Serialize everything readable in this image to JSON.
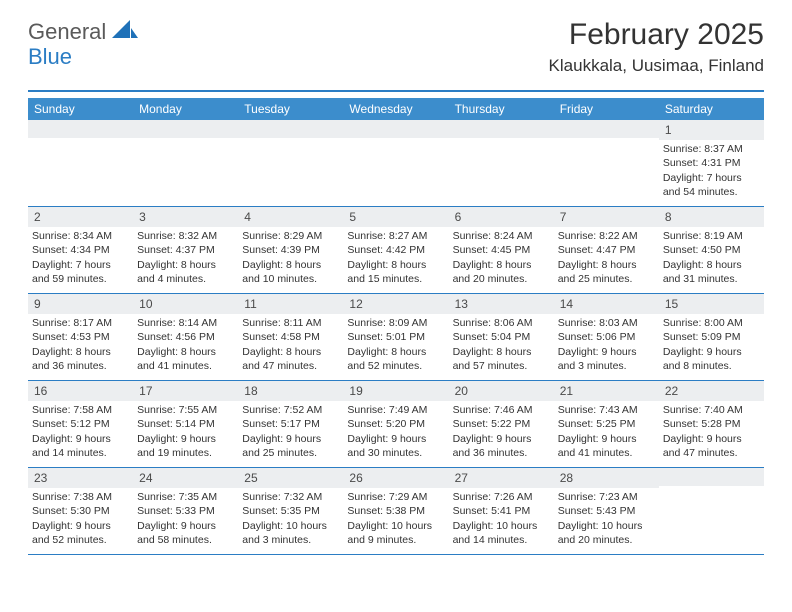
{
  "logo": {
    "general": "General",
    "blue": "Blue"
  },
  "header": {
    "month_title": "February 2025",
    "location": "Klaukkala, Uusimaa, Finland"
  },
  "colors": {
    "accent": "#3c8dcc",
    "rule": "#2b7dc4",
    "daynum_bg": "#eceef0",
    "text": "#333333"
  },
  "day_names": [
    "Sunday",
    "Monday",
    "Tuesday",
    "Wednesday",
    "Thursday",
    "Friday",
    "Saturday"
  ],
  "weeks": [
    [
      null,
      null,
      null,
      null,
      null,
      null,
      {
        "n": "1",
        "sunrise": "8:37 AM",
        "sunset": "4:31 PM",
        "daylight": "7 hours and 54 minutes."
      }
    ],
    [
      {
        "n": "2",
        "sunrise": "8:34 AM",
        "sunset": "4:34 PM",
        "daylight": "7 hours and 59 minutes."
      },
      {
        "n": "3",
        "sunrise": "8:32 AM",
        "sunset": "4:37 PM",
        "daylight": "8 hours and 4 minutes."
      },
      {
        "n": "4",
        "sunrise": "8:29 AM",
        "sunset": "4:39 PM",
        "daylight": "8 hours and 10 minutes."
      },
      {
        "n": "5",
        "sunrise": "8:27 AM",
        "sunset": "4:42 PM",
        "daylight": "8 hours and 15 minutes."
      },
      {
        "n": "6",
        "sunrise": "8:24 AM",
        "sunset": "4:45 PM",
        "daylight": "8 hours and 20 minutes."
      },
      {
        "n": "7",
        "sunrise": "8:22 AM",
        "sunset": "4:47 PM",
        "daylight": "8 hours and 25 minutes."
      },
      {
        "n": "8",
        "sunrise": "8:19 AM",
        "sunset": "4:50 PM",
        "daylight": "8 hours and 31 minutes."
      }
    ],
    [
      {
        "n": "9",
        "sunrise": "8:17 AM",
        "sunset": "4:53 PM",
        "daylight": "8 hours and 36 minutes."
      },
      {
        "n": "10",
        "sunrise": "8:14 AM",
        "sunset": "4:56 PM",
        "daylight": "8 hours and 41 minutes."
      },
      {
        "n": "11",
        "sunrise": "8:11 AM",
        "sunset": "4:58 PM",
        "daylight": "8 hours and 47 minutes."
      },
      {
        "n": "12",
        "sunrise": "8:09 AM",
        "sunset": "5:01 PM",
        "daylight": "8 hours and 52 minutes."
      },
      {
        "n": "13",
        "sunrise": "8:06 AM",
        "sunset": "5:04 PM",
        "daylight": "8 hours and 57 minutes."
      },
      {
        "n": "14",
        "sunrise": "8:03 AM",
        "sunset": "5:06 PM",
        "daylight": "9 hours and 3 minutes."
      },
      {
        "n": "15",
        "sunrise": "8:00 AM",
        "sunset": "5:09 PM",
        "daylight": "9 hours and 8 minutes."
      }
    ],
    [
      {
        "n": "16",
        "sunrise": "7:58 AM",
        "sunset": "5:12 PM",
        "daylight": "9 hours and 14 minutes."
      },
      {
        "n": "17",
        "sunrise": "7:55 AM",
        "sunset": "5:14 PM",
        "daylight": "9 hours and 19 minutes."
      },
      {
        "n": "18",
        "sunrise": "7:52 AM",
        "sunset": "5:17 PM",
        "daylight": "9 hours and 25 minutes."
      },
      {
        "n": "19",
        "sunrise": "7:49 AM",
        "sunset": "5:20 PM",
        "daylight": "9 hours and 30 minutes."
      },
      {
        "n": "20",
        "sunrise": "7:46 AM",
        "sunset": "5:22 PM",
        "daylight": "9 hours and 36 minutes."
      },
      {
        "n": "21",
        "sunrise": "7:43 AM",
        "sunset": "5:25 PM",
        "daylight": "9 hours and 41 minutes."
      },
      {
        "n": "22",
        "sunrise": "7:40 AM",
        "sunset": "5:28 PM",
        "daylight": "9 hours and 47 minutes."
      }
    ],
    [
      {
        "n": "23",
        "sunrise": "7:38 AM",
        "sunset": "5:30 PM",
        "daylight": "9 hours and 52 minutes."
      },
      {
        "n": "24",
        "sunrise": "7:35 AM",
        "sunset": "5:33 PM",
        "daylight": "9 hours and 58 minutes."
      },
      {
        "n": "25",
        "sunrise": "7:32 AM",
        "sunset": "5:35 PM",
        "daylight": "10 hours and 3 minutes."
      },
      {
        "n": "26",
        "sunrise": "7:29 AM",
        "sunset": "5:38 PM",
        "daylight": "10 hours and 9 minutes."
      },
      {
        "n": "27",
        "sunrise": "7:26 AM",
        "sunset": "5:41 PM",
        "daylight": "10 hours and 14 minutes."
      },
      {
        "n": "28",
        "sunrise": "7:23 AM",
        "sunset": "5:43 PM",
        "daylight": "10 hours and 20 minutes."
      },
      null
    ]
  ],
  "labels": {
    "sunrise": "Sunrise:",
    "sunset": "Sunset:",
    "daylight": "Daylight:"
  }
}
